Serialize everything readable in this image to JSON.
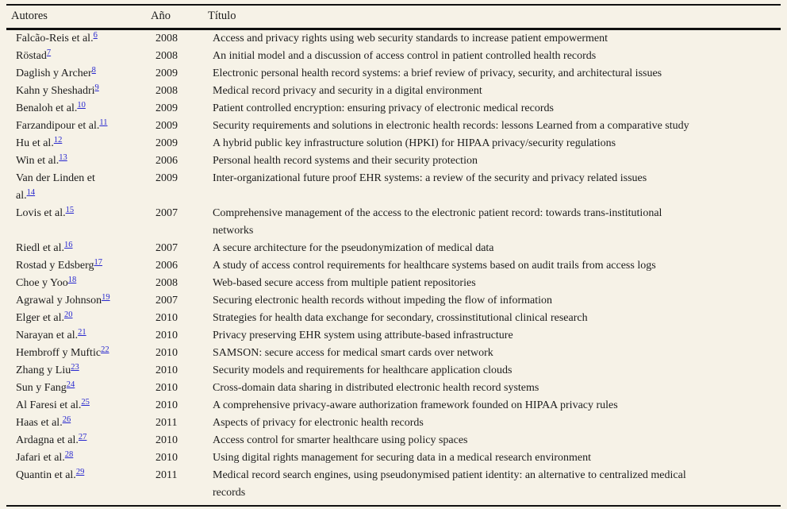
{
  "theme": {
    "page_bg": "#f6f2e7",
    "text": "#1c1c1c",
    "link_color": "#2727cf",
    "rule_color": "#111111"
  },
  "table": {
    "columns": [
      "Autores",
      "Año",
      "Título"
    ],
    "rows": [
      {
        "author": "Falcão-Reis et al.",
        "ref": "6",
        "year": "2008",
        "title": "Access and privacy rights using web security standards to increase patient empowerment"
      },
      {
        "author": "Röstad",
        "ref": "7",
        "year": "2008",
        "title": "An initial model and a discussion of access control in patient controlled health records"
      },
      {
        "author": "Daglish y Archer",
        "ref": "8",
        "year": "2009",
        "title": "Electronic personal health record systems: a brief review of privacy, security, and architectural issues"
      },
      {
        "author": "Kahn y Sheshadri",
        "ref": "9",
        "year": "2008",
        "title": "Medical record privacy and security in a digital environment"
      },
      {
        "author": "Benaloh et al.",
        "ref": "10",
        "year": "2009",
        "title": "Patient controlled encryption: ensuring privacy of electronic medical records"
      },
      {
        "author": "Farzandipour et al.",
        "ref": "11",
        "year": "2009",
        "title": "Security requirements and solutions in electronic health records: lessons Learned from a comparative study"
      },
      {
        "author": "Hu et al.",
        "ref": "12",
        "year": "2009",
        "title": "A hybrid public key infrastructure solution (HPKI) for HIPAA privacy/security regulations"
      },
      {
        "author": "Win et al.",
        "ref": "13",
        "year": "2006",
        "title": "Personal health record systems and their security protection"
      },
      {
        "author": "Van der Linden et\nal.",
        "ref": "14",
        "year": "2009",
        "title": "Inter-organizational future proof EHR systems: a review of the security and privacy related issues"
      },
      {
        "author": "Lovis et al.",
        "ref": "15",
        "year": "2007",
        "title": "Comprehensive management of the access to the electronic patient record: towards trans-institutional\nnetworks"
      },
      {
        "author": "Riedl et al.",
        "ref": "16",
        "year": "2007",
        "title": "A secure architecture for the pseudonymization of medical data"
      },
      {
        "author": "Rostad y Edsberg",
        "ref": "17",
        "year": "2006",
        "title": "A study of access control requirements for healthcare systems based on audit trails from access logs"
      },
      {
        "author": "Choe y Yoo",
        "ref": "18",
        "year": "2008",
        "title": "Web-based secure access from multiple patient repositories"
      },
      {
        "author": "Agrawal y Johnson",
        "ref": "19",
        "year": "2007",
        "title": "Securing electronic health records without impeding the flow of information"
      },
      {
        "author": "Elger et al.",
        "ref": "20",
        "year": "2010",
        "title": "Strategies for health data exchange for secondary, crossinstitutional clinical research"
      },
      {
        "author": "Narayan et al.",
        "ref": "21",
        "year": "2010",
        "title": "Privacy preserving EHR system using attribute-based infrastructure"
      },
      {
        "author": "Hembroff y Muftic",
        "ref": "22",
        "year": "2010",
        "title": "SAMSON: secure access for medical smart cards over network"
      },
      {
        "author": "Zhang y Liu",
        "ref": "23",
        "year": "2010",
        "title": "Security models and requirements for healthcare application clouds"
      },
      {
        "author": "Sun y Fang",
        "ref": "24",
        "year": "2010",
        "title": "Cross-domain data sharing in distributed electronic health record systems"
      },
      {
        "author": "Al Faresi et al.",
        "ref": "25",
        "year": "2010",
        "title": "A comprehensive privacy-aware authorization framework founded on HIPAA privacy rules"
      },
      {
        "author": "Haas et al.",
        "ref": "26",
        "year": "2011",
        "title": "Aspects of privacy for electronic health records"
      },
      {
        "author": "Ardagna et al.",
        "ref": "27",
        "year": "2010",
        "title": "Access control for smarter healthcare using policy spaces"
      },
      {
        "author": "Jafari et al.",
        "ref": "28",
        "year": "2010",
        "title": "Using digital rights management for securing data in a medical research environment"
      },
      {
        "author": "Quantin et al.",
        "ref": "29",
        "year": "2011",
        "title": "Medical record search engines, using pseudonymised patient identity: an alternative to centralized medical\nrecords"
      }
    ]
  }
}
